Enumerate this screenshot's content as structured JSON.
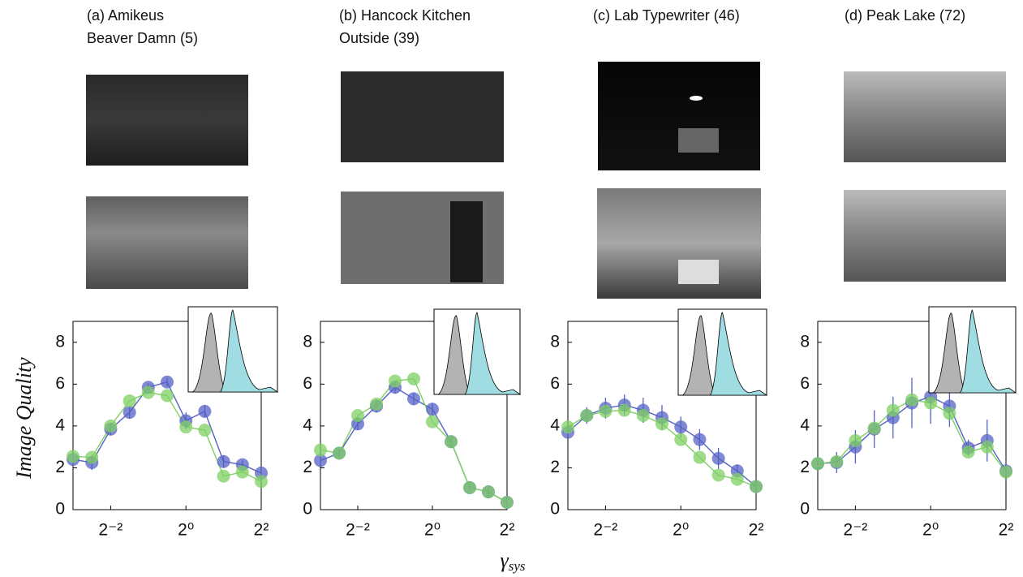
{
  "ylabel": "Image Quality",
  "xlabel": {
    "symbol": "γ",
    "subscript": "sys"
  },
  "chart_data": [
    {
      "type": "line",
      "title": [
        "(a) Amikeus",
        "Beaver Damn (5)"
      ],
      "x": [
        0.125,
        0.177,
        0.25,
        0.354,
        0.5,
        0.707,
        1,
        1.414,
        2,
        2.828,
        4
      ],
      "xscale": "log",
      "xlim": [
        0.125,
        4
      ],
      "xticks": [
        {
          "value": 0.25,
          "label": "2⁻²"
        },
        {
          "value": 1,
          "label": "2⁰"
        },
        {
          "value": 4,
          "label": "2²"
        }
      ],
      "ylim": [
        0,
        9
      ],
      "yticks": [
        0,
        2,
        4,
        6,
        8
      ],
      "series": [
        {
          "color": "#5561c4",
          "values": [
            2.4,
            2.25,
            3.85,
            4.65,
            5.85,
            6.1,
            4.25,
            4.7,
            2.3,
            2.15,
            1.75
          ],
          "errors": [
            0.25,
            0.35,
            0.3,
            0.3,
            0.2,
            0.2,
            0.4,
            0.3,
            0.3,
            0.2,
            0.2
          ]
        },
        {
          "color": "#7fd063",
          "values": [
            2.55,
            2.5,
            4.0,
            5.2,
            5.6,
            5.45,
            3.95,
            3.8,
            1.6,
            1.8,
            1.35
          ]
        }
      ]
    },
    {
      "type": "line",
      "title": [
        "(b) Hancock Kitchen",
        "Outside (39)"
      ],
      "x": [
        0.125,
        0.177,
        0.25,
        0.354,
        0.5,
        0.707,
        1,
        1.414,
        2,
        2.828,
        4
      ],
      "xscale": "log",
      "xlim": [
        0.125,
        4
      ],
      "xticks": [
        {
          "value": 0.25,
          "label": "2⁻²"
        },
        {
          "value": 1,
          "label": "2⁰"
        },
        {
          "value": 4,
          "label": "2²"
        }
      ],
      "ylim": [
        0,
        9
      ],
      "yticks": [
        0,
        2,
        4,
        6,
        8
      ],
      "series": [
        {
          "color": "#5561c4",
          "values": [
            2.35,
            2.7,
            4.1,
            4.95,
            5.85,
            5.3,
            4.8,
            3.25,
            1.05,
            0.85,
            0.35
          ],
          "errors": [
            0.2,
            0.2,
            0.3,
            0.3,
            0.3,
            0.3,
            0.3,
            0.3,
            0.2,
            0.3,
            0.2
          ]
        },
        {
          "color": "#7fd063",
          "values": [
            2.85,
            2.7,
            4.5,
            5.05,
            6.15,
            6.25,
            4.2,
            3.25,
            1.05,
            0.85,
            0.35
          ]
        }
      ]
    },
    {
      "type": "line",
      "title": [
        "(c) Lab Typewriter (46)"
      ],
      "x": [
        0.125,
        0.177,
        0.25,
        0.354,
        0.5,
        0.707,
        1,
        1.414,
        2,
        2.828,
        4
      ],
      "xscale": "log",
      "xlim": [
        0.125,
        4
      ],
      "xticks": [
        {
          "value": 0.25,
          "label": "2⁻²"
        },
        {
          "value": 1,
          "label": "2⁰"
        },
        {
          "value": 4,
          "label": "2²"
        }
      ],
      "ylim": [
        0,
        9
      ],
      "yticks": [
        0,
        2,
        4,
        6,
        8
      ],
      "series": [
        {
          "color": "#5561c4",
          "values": [
            3.7,
            4.5,
            4.85,
            5.0,
            4.75,
            4.4,
            3.95,
            3.35,
            2.45,
            1.85,
            1.1
          ],
          "errors": [
            0.2,
            0.4,
            0.5,
            0.5,
            0.6,
            0.6,
            0.5,
            0.5,
            0.5,
            0.3,
            0.2
          ]
        },
        {
          "color": "#7fd063",
          "values": [
            3.95,
            4.5,
            4.7,
            4.75,
            4.5,
            4.1,
            3.35,
            2.5,
            1.65,
            1.45,
            1.1
          ]
        }
      ]
    },
    {
      "type": "line",
      "title": [
        "(d) Peak Lake (72)"
      ],
      "x": [
        0.125,
        0.177,
        0.25,
        0.354,
        0.5,
        0.707,
        1,
        1.414,
        2,
        2.828,
        4
      ],
      "xscale": "log",
      "xlim": [
        0.125,
        4
      ],
      "xticks": [
        {
          "value": 0.25,
          "label": "2⁻²"
        },
        {
          "value": 1,
          "label": "2⁰"
        },
        {
          "value": 4,
          "label": "2²"
        }
      ],
      "ylim": [
        0,
        9
      ],
      "yticks": [
        0,
        2,
        4,
        6,
        8
      ],
      "series": [
        {
          "color": "#5561c4",
          "values": [
            2.2,
            2.25,
            3.0,
            3.85,
            4.4,
            5.1,
            5.4,
            4.95,
            2.95,
            3.3,
            1.85
          ],
          "errors": [
            0.2,
            0.5,
            0.8,
            0.9,
            1.0,
            1.2,
            1.3,
            1.0,
            0.4,
            1.0,
            0.2
          ]
        },
        {
          "color": "#7fd063",
          "values": [
            2.2,
            2.3,
            3.3,
            3.9,
            4.75,
            5.25,
            5.1,
            4.6,
            2.75,
            3.0,
            1.8
          ]
        }
      ]
    }
  ]
}
